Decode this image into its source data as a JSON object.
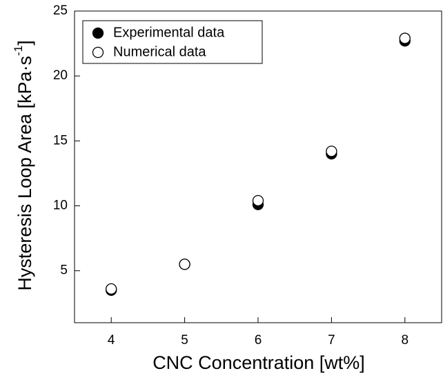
{
  "chart_data": {
    "type": "scatter",
    "xlabel": "CNC Concentration [wt%]",
    "ylabel": "Hysteresis Loop Area [kPa·s",
    "ylabel_superscript": "-1",
    "ylabel_end": "]",
    "x": [
      4,
      5,
      6,
      7,
      8
    ],
    "series": [
      {
        "name": "Experimental data",
        "color": "#000000",
        "filled": true,
        "values": [
          3.5,
          5.5,
          10.1,
          14.0,
          22.7
        ]
      },
      {
        "name": "Numerical data",
        "color": "#000000",
        "filled": false,
        "values": [
          3.6,
          5.5,
          10.4,
          14.2,
          22.9
        ]
      }
    ],
    "xlim": [
      3.5,
      8.5
    ],
    "xticks": [
      4,
      5,
      6,
      7,
      8
    ],
    "ylim": [
      1,
      25
    ],
    "yticks": [
      5,
      10,
      15,
      20,
      25
    ],
    "legend": "upper left"
  }
}
